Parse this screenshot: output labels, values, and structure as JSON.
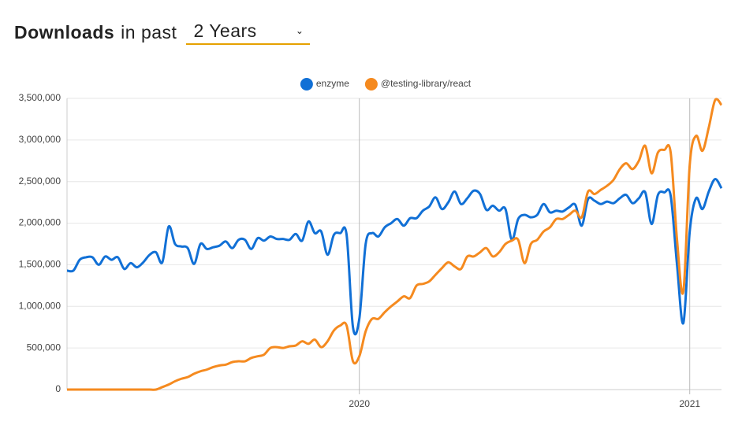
{
  "header": {
    "label": "Downloads",
    "label_suffix": "in past",
    "period": "2 Years"
  },
  "chart_data": {
    "type": "line",
    "categories": [
      null,
      null,
      null,
      null,
      null,
      null,
      null,
      null,
      null,
      null,
      null,
      null,
      null,
      null,
      null,
      null,
      null,
      null,
      null,
      null,
      null,
      null,
      null,
      null,
      null,
      null,
      null,
      null,
      null,
      null,
      null,
      null,
      null,
      null,
      null,
      null,
      null,
      null,
      null,
      null,
      null,
      null,
      null,
      null,
      null,
      null,
      "2020",
      null,
      null,
      null,
      null,
      null,
      null,
      null,
      null,
      null,
      null,
      null,
      null,
      null,
      null,
      null,
      null,
      null,
      null,
      null,
      null,
      null,
      null,
      null,
      null,
      null,
      null,
      null,
      null,
      null,
      null,
      null,
      null,
      null,
      null,
      null,
      null,
      null,
      null,
      null,
      null,
      null,
      null,
      null,
      null,
      null,
      null,
      null,
      null,
      null,
      null,
      null,
      "2021",
      null,
      null,
      null,
      null,
      null
    ],
    "series": [
      {
        "name": "enzyme",
        "color": "#1170d6",
        "values": [
          1430000,
          1430000,
          1560000,
          1590000,
          1590000,
          1500000,
          1600000,
          1560000,
          1590000,
          1450000,
          1520000,
          1470000,
          1530000,
          1620000,
          1650000,
          1530000,
          1960000,
          1750000,
          1720000,
          1700000,
          1510000,
          1750000,
          1690000,
          1710000,
          1730000,
          1780000,
          1700000,
          1800000,
          1800000,
          1690000,
          1820000,
          1790000,
          1840000,
          1810000,
          1810000,
          1800000,
          1870000,
          1790000,
          2020000,
          1880000,
          1900000,
          1620000,
          1860000,
          1880000,
          1860000,
          750000,
          850000,
          1750000,
          1880000,
          1840000,
          1950000,
          2000000,
          2050000,
          1970000,
          2060000,
          2060000,
          2150000,
          2200000,
          2310000,
          2170000,
          2250000,
          2380000,
          2230000,
          2300000,
          2390000,
          2350000,
          2160000,
          2210000,
          2150000,
          2170000,
          1800000,
          2050000,
          2100000,
          2070000,
          2100000,
          2230000,
          2130000,
          2150000,
          2140000,
          2190000,
          2220000,
          1970000,
          2290000,
          2270000,
          2230000,
          2260000,
          2240000,
          2300000,
          2340000,
          2240000,
          2300000,
          2370000,
          1990000,
          2340000,
          2370000,
          2330000,
          1500000,
          800000,
          1900000,
          2300000,
          2170000,
          2380000,
          2530000,
          2420000
        ]
      },
      {
        "name": "@testing-library/react",
        "color": "#f58a1f",
        "values": [
          0,
          0,
          0,
          0,
          0,
          0,
          0,
          0,
          0,
          0,
          0,
          0,
          0,
          0,
          0,
          30000,
          60000,
          100000,
          130000,
          150000,
          190000,
          220000,
          240000,
          270000,
          290000,
          300000,
          330000,
          340000,
          340000,
          380000,
          400000,
          420000,
          500000,
          510000,
          500000,
          520000,
          530000,
          580000,
          550000,
          600000,
          510000,
          580000,
          710000,
          770000,
          770000,
          340000,
          400000,
          700000,
          850000,
          850000,
          930000,
          1000000,
          1060000,
          1120000,
          1100000,
          1250000,
          1270000,
          1300000,
          1380000,
          1460000,
          1530000,
          1480000,
          1450000,
          1600000,
          1600000,
          1650000,
          1700000,
          1600000,
          1650000,
          1750000,
          1790000,
          1800000,
          1520000,
          1750000,
          1800000,
          1900000,
          1950000,
          2050000,
          2050000,
          2100000,
          2150000,
          2070000,
          2380000,
          2350000,
          2400000,
          2450000,
          2520000,
          2650000,
          2720000,
          2650000,
          2750000,
          2930000,
          2600000,
          2850000,
          2880000,
          2850000,
          1800000,
          1180000,
          2700000,
          3050000,
          2870000,
          3150000,
          3480000,
          3420000
        ]
      }
    ],
    "ylim": [
      0,
      3500000
    ],
    "yticks": [
      0,
      {
        "value": 500000,
        "label": "500,000"
      },
      {
        "value": 1000000,
        "label": "1,000,000"
      },
      {
        "value": 1500000,
        "label": "1,500,000"
      },
      {
        "value": 2000000,
        "label": "2,000,000"
      },
      {
        "value": 2500000,
        "label": "2,500,000"
      },
      {
        "value": 3000000,
        "label": "3,000,000"
      },
      {
        "value": 3500000,
        "label": "3,500,000"
      }
    ],
    "grid": true,
    "legend": "top"
  }
}
